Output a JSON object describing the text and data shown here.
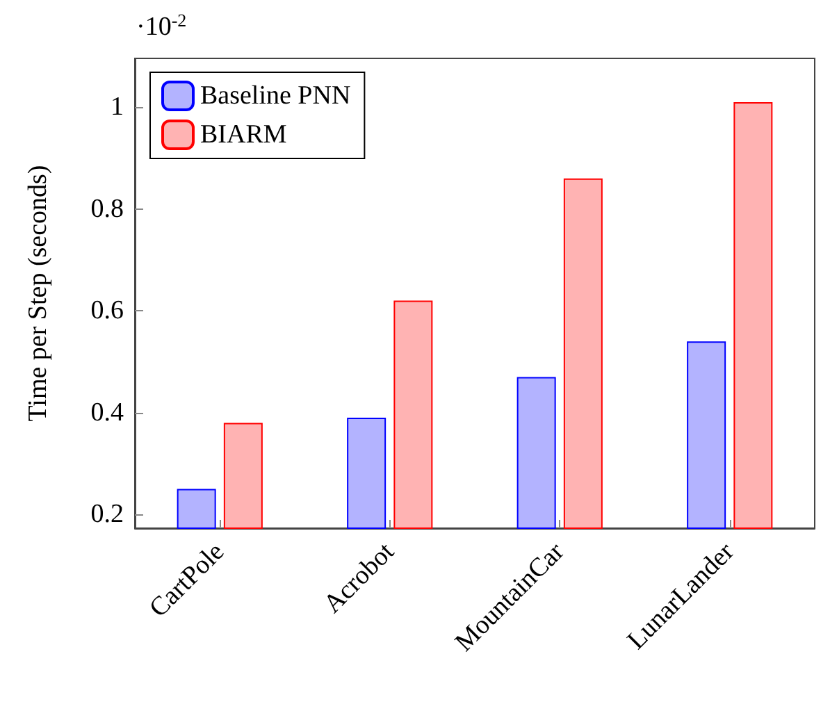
{
  "chart_data": {
    "type": "bar",
    "ylabel": "Time per Step (seconds)",
    "annotations": [
      "·10$^{-2}$"
    ],
    "categories": [
      "CartPole",
      "Acrobot",
      "MountainCar",
      "LunarLander"
    ],
    "series": [
      {
        "name": "Baseline PNN",
        "color": "#b3b3ff",
        "values": [
          0.25,
          0.39,
          0.47,
          0.54
        ]
      },
      {
        "name": "BIARM",
        "color": "#ffb3b3",
        "values": [
          0.38,
          0.62,
          0.86,
          1.01
        ]
      }
    ],
    "ylim": [
      0.173,
      1.096
    ],
    "yticks": [
      0.2,
      0.4,
      0.6,
      0.8,
      1
    ],
    "grid": false,
    "legend": "top left"
  }
}
